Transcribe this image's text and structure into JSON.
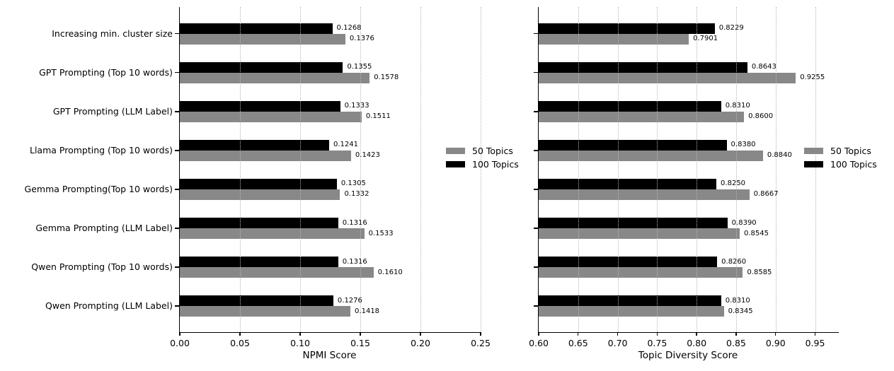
{
  "figure": {
    "background": "#ffffff",
    "grid_color": "#b5b5b5"
  },
  "chart_data": [
    {
      "type": "bar",
      "orientation": "horizontal",
      "title": "",
      "xlabel": "NPMI Score",
      "categories": [
        "Increasing min. cluster size",
        "GPT Prompting (Top 10 words)",
        "GPT Prompting (LLM Label)",
        "Llama Prompting (Top 10 words)",
        "Gemma Prompting(Top 10 words)",
        "Gemma Prompting (LLM Label)",
        "Qwen Prompting (Top 10 words)",
        "Qwen Prompting (LLM Label)"
      ],
      "series": [
        {
          "name": "100 Topics",
          "color": "#000000",
          "values": [
            0.1268,
            0.1355,
            0.1333,
            0.1241,
            0.1305,
            0.1316,
            0.1316,
            0.1276
          ],
          "labels": [
            "0.1268",
            "0.1355",
            "0.1333",
            "0.1241",
            "0.1305",
            "0.1316",
            "0.1316",
            "0.1276"
          ]
        },
        {
          "name": "50 Topics",
          "color": "#888888",
          "values": [
            0.1376,
            0.1578,
            0.1511,
            0.1423,
            0.1332,
            0.1533,
            0.161,
            0.1418
          ],
          "labels": [
            "0.1376",
            "0.1578",
            "0.1511",
            "0.1423",
            "0.1332",
            "0.1533",
            "0.1610",
            "0.1418"
          ]
        }
      ],
      "legend": [
        {
          "label": "50 Topics",
          "color": "#888888"
        },
        {
          "label": "100 Topics",
          "color": "#000000"
        }
      ],
      "legend_location": "center right",
      "xlim": [
        0.0,
        0.25
      ],
      "xticks": [
        0.0,
        0.05,
        0.1,
        0.15,
        0.2,
        0.25
      ],
      "xtick_labels": [
        "0.00",
        "0.05",
        "0.10",
        "0.15",
        "0.20",
        "0.25"
      ],
      "grid": "vertical-dotted",
      "show_category_labels": true
    },
    {
      "type": "bar",
      "orientation": "horizontal",
      "title": "",
      "xlabel": "Topic Diversity Score",
      "categories": [
        "Increasing min. cluster size",
        "GPT Prompting (Top 10 words)",
        "GPT Prompting (LLM Label)",
        "Llama Prompting (Top 10 words)",
        "Gemma Prompting(Top 10 words)",
        "Gemma Prompting (LLM Label)",
        "Qwen Prompting (Top 10 words)",
        "Qwen Prompting (LLM Label)"
      ],
      "series": [
        {
          "name": "100 Topics",
          "color": "#000000",
          "values": [
            0.8229,
            0.8643,
            0.831,
            0.838,
            0.825,
            0.839,
            0.826,
            0.831
          ],
          "labels": [
            "0.8229",
            "0.8643",
            "0.8310",
            "0.8380",
            "0.8250",
            "0.8390",
            "0.8260",
            "0.8310"
          ]
        },
        {
          "name": "50 Topics",
          "color": "#888888",
          "values": [
            0.7901,
            0.9255,
            0.86,
            0.884,
            0.8667,
            0.8545,
            0.8585,
            0.8345
          ],
          "labels": [
            "0.7901",
            "0.9255",
            "0.8600",
            "0.8840",
            "0.8667",
            "0.8545",
            "0.8585",
            "0.8345"
          ]
        }
      ],
      "legend": [
        {
          "label": "50 Topics",
          "color": "#888888"
        },
        {
          "label": "100 Topics",
          "color": "#000000"
        }
      ],
      "legend_location": "center right",
      "xlim": [
        0.6,
        0.98
      ],
      "xticks": [
        0.6,
        0.65,
        0.7,
        0.75,
        0.8,
        0.85,
        0.9,
        0.95
      ],
      "xtick_labels": [
        "0.60",
        "0.65",
        "0.70",
        "0.75",
        "0.80",
        "0.85",
        "0.90",
        "0.95"
      ],
      "grid": "vertical-dotted",
      "show_category_labels": false
    }
  ]
}
